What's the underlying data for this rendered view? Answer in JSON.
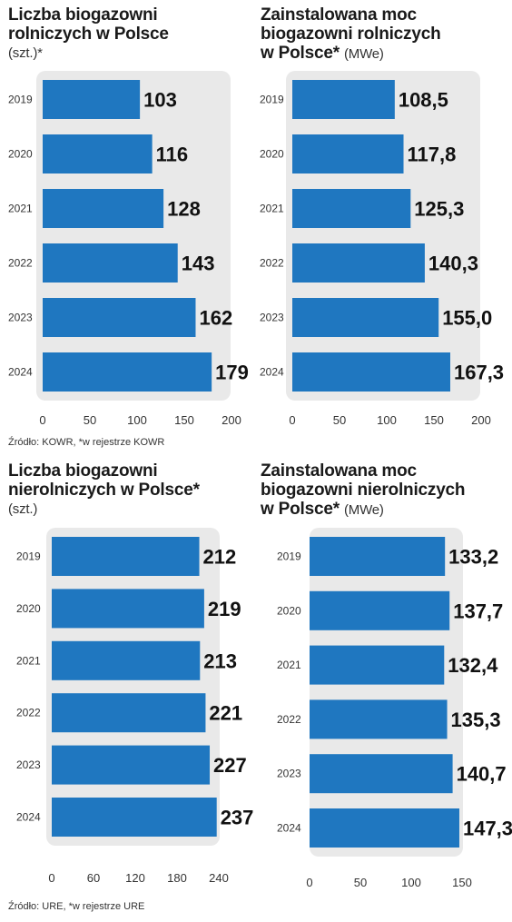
{
  "charts": [
    {
      "title_lines": [
        "Liczba biogazowni",
        "rolniczych w Polsce"
      ],
      "unit_text": "(szt.)*",
      "unit_on_new_line": true
    },
    {
      "title_lines": [
        "Zainstalowana moc",
        "biogazowni rolniczych",
        "w Polsce*"
      ],
      "unit_text": "(MWe)",
      "unit_on_new_line": false
    },
    {
      "title_lines": [
        "Liczba biogazowni",
        "nierolniczych w Polsce*"
      ],
      "unit_text": "(szt.)",
      "unit_on_new_line": true
    },
    {
      "title_lines": [
        "Zainstalowana moc",
        "biogazowni nierolniczych",
        "w Polsce*"
      ],
      "unit_text": "(MWe)",
      "unit_on_new_line": false
    }
  ],
  "sources": {
    "top": "Źródło: KOWR, *w rejestrze KOWR",
    "bottom": "Źródło: URE, *w rejestrze URE"
  },
  "colors": {
    "bar": "#1f77c0",
    "panel": "#e9e9e9",
    "text": "#1a1a1a"
  },
  "chart_data": [
    {
      "type": "bar",
      "orientation": "horizontal",
      "title": "Liczba biogazowni rolniczych w Polsce (szt.)*",
      "categories": [
        "2019",
        "2020",
        "2021",
        "2022",
        "2023",
        "2024"
      ],
      "values": [
        103,
        116,
        128,
        143,
        162,
        179
      ],
      "value_labels": [
        "103",
        "116",
        "128",
        "143",
        "162",
        "179"
      ],
      "xlim": [
        0,
        200
      ],
      "xticks": [
        "0",
        "50",
        "100",
        "150",
        "200"
      ],
      "xlabel": "",
      "ylabel": "",
      "grid": false
    },
    {
      "type": "bar",
      "orientation": "horizontal",
      "title": "Zainstalowana moc biogazowni rolniczych w Polsce* (MWe)",
      "categories": [
        "2019",
        "2020",
        "2021",
        "2022",
        "2023",
        "2024"
      ],
      "values": [
        108.5,
        117.8,
        125.3,
        140.3,
        155.0,
        167.3
      ],
      "value_labels": [
        "108,5",
        "117,8",
        "125,3",
        "140,3",
        "155,0",
        "167,3"
      ],
      "xlim": [
        0,
        200
      ],
      "xticks": [
        "0",
        "50",
        "100",
        "150",
        "200"
      ],
      "xlabel": "",
      "ylabel": "",
      "grid": false
    },
    {
      "type": "bar",
      "orientation": "horizontal",
      "title": "Liczba biogazowni nierolniczych w Polsce* (szt.)",
      "categories": [
        "2019",
        "2020",
        "2021",
        "2022",
        "2023",
        "2024"
      ],
      "values": [
        212,
        219,
        213,
        221,
        227,
        237
      ],
      "value_labels": [
        "212",
        "219",
        "213",
        "221",
        "227",
        "237"
      ],
      "xlim": [
        0,
        240
      ],
      "xticks": [
        "0",
        "60",
        "120",
        "180",
        "240"
      ],
      "xlabel": "",
      "ylabel": "",
      "grid": false
    },
    {
      "type": "bar",
      "orientation": "horizontal",
      "title": "Zainstalowana moc biogazowni nierolniczych w Polsce* (MWe)",
      "categories": [
        "2019",
        "2020",
        "2021",
        "2022",
        "2023",
        "2024"
      ],
      "values": [
        133.2,
        137.7,
        132.4,
        135.3,
        140.7,
        147.3
      ],
      "value_labels": [
        "133,2",
        "137,7",
        "132,4",
        "135,3",
        "140,7",
        "147,3"
      ],
      "xlim": [
        0,
        150
      ],
      "xticks": [
        "0",
        "50",
        "100",
        "150"
      ],
      "xlabel": "",
      "ylabel": "",
      "grid": false
    }
  ]
}
